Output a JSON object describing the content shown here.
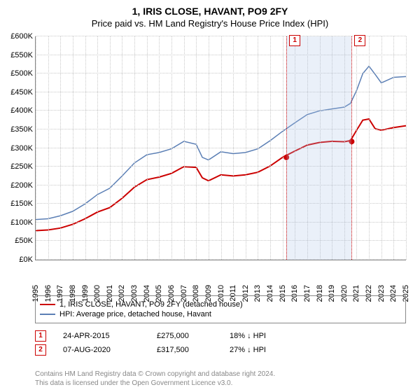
{
  "title_main": "1, IRIS CLOSE, HAVANT, PO9 2FY",
  "title_sub": "Price paid vs. HM Land Registry's House Price Index (HPI)",
  "chart": {
    "type": "line",
    "background_color": "#ffffff",
    "grid_color": "#c8c8c8",
    "axis_color": "#888888",
    "title_fontsize": 14,
    "label_fontsize": 11,
    "y": {
      "min": 0,
      "max": 600000,
      "step": 50000,
      "fmt_prefix": "£",
      "fmt_suffix": "K",
      "fmt_div": 1000
    },
    "x": {
      "min": 1995,
      "max": 2025,
      "step": 1
    },
    "series": [
      {
        "id": "price_paid",
        "label": "1, IRIS CLOSE, HAVANT, PO9 2FY (detached house)",
        "color": "#cc0000",
        "width": 2,
        "points": [
          [
            1995,
            78000
          ],
          [
            1996,
            80000
          ],
          [
            1997,
            85000
          ],
          [
            1998,
            95000
          ],
          [
            1999,
            110000
          ],
          [
            2000,
            128000
          ],
          [
            2001,
            140000
          ],
          [
            2002,
            165000
          ],
          [
            2003,
            195000
          ],
          [
            2004,
            215000
          ],
          [
            2005,
            222000
          ],
          [
            2006,
            232000
          ],
          [
            2007,
            250000
          ],
          [
            2008,
            248000
          ],
          [
            2008.5,
            220000
          ],
          [
            2009,
            212000
          ],
          [
            2010,
            228000
          ],
          [
            2011,
            225000
          ],
          [
            2012,
            228000
          ],
          [
            2013,
            235000
          ],
          [
            2014,
            252000
          ],
          [
            2015,
            275000
          ],
          [
            2016,
            292000
          ],
          [
            2017,
            308000
          ],
          [
            2018,
            315000
          ],
          [
            2019,
            318000
          ],
          [
            2020,
            317000
          ],
          [
            2020.5,
            320000
          ],
          [
            2021,
            348000
          ],
          [
            2021.5,
            375000
          ],
          [
            2022,
            378000
          ],
          [
            2022.5,
            352000
          ],
          [
            2023,
            348000
          ],
          [
            2024,
            355000
          ],
          [
            2025,
            360000
          ]
        ]
      },
      {
        "id": "hpi",
        "label": "HPI: Average price, detached house, Havant",
        "color": "#5b7fb5",
        "width": 1.5,
        "points": [
          [
            1995,
            108000
          ],
          [
            1996,
            110000
          ],
          [
            1997,
            118000
          ],
          [
            1998,
            130000
          ],
          [
            1999,
            150000
          ],
          [
            2000,
            175000
          ],
          [
            2001,
            192000
          ],
          [
            2002,
            225000
          ],
          [
            2003,
            260000
          ],
          [
            2004,
            282000
          ],
          [
            2005,
            288000
          ],
          [
            2006,
            298000
          ],
          [
            2007,
            318000
          ],
          [
            2008,
            310000
          ],
          [
            2008.5,
            275000
          ],
          [
            2009,
            268000
          ],
          [
            2010,
            290000
          ],
          [
            2011,
            285000
          ],
          [
            2012,
            288000
          ],
          [
            2013,
            298000
          ],
          [
            2014,
            320000
          ],
          [
            2015,
            345000
          ],
          [
            2016,
            368000
          ],
          [
            2017,
            390000
          ],
          [
            2018,
            400000
          ],
          [
            2019,
            405000
          ],
          [
            2020,
            410000
          ],
          [
            2020.5,
            420000
          ],
          [
            2021,
            455000
          ],
          [
            2021.5,
            500000
          ],
          [
            2022,
            520000
          ],
          [
            2022.5,
            498000
          ],
          [
            2023,
            475000
          ],
          [
            2024,
            490000
          ],
          [
            2025,
            492000
          ]
        ]
      }
    ],
    "shaded_band": {
      "from": 2015.31,
      "to": 2020.6,
      "color": "rgba(173,196,230,0.25)"
    },
    "markers": [
      {
        "n": "1",
        "x": 2015.31,
        "y": 275000,
        "line_color": "#cc0000"
      },
      {
        "n": "2",
        "x": 2020.6,
        "y": 317500,
        "line_color": "#cc0000"
      }
    ]
  },
  "marker_table": [
    {
      "n": "1",
      "date": "24-APR-2015",
      "price": "£275,000",
      "delta": "18% ↓ HPI"
    },
    {
      "n": "2",
      "date": "07-AUG-2020",
      "price": "£317,500",
      "delta": "27% ↓ HPI"
    }
  ],
  "footnote_l1": "Contains HM Land Registry data © Crown copyright and database right 2024.",
  "footnote_l2": "This data is licensed under the Open Government Licence v3.0."
}
